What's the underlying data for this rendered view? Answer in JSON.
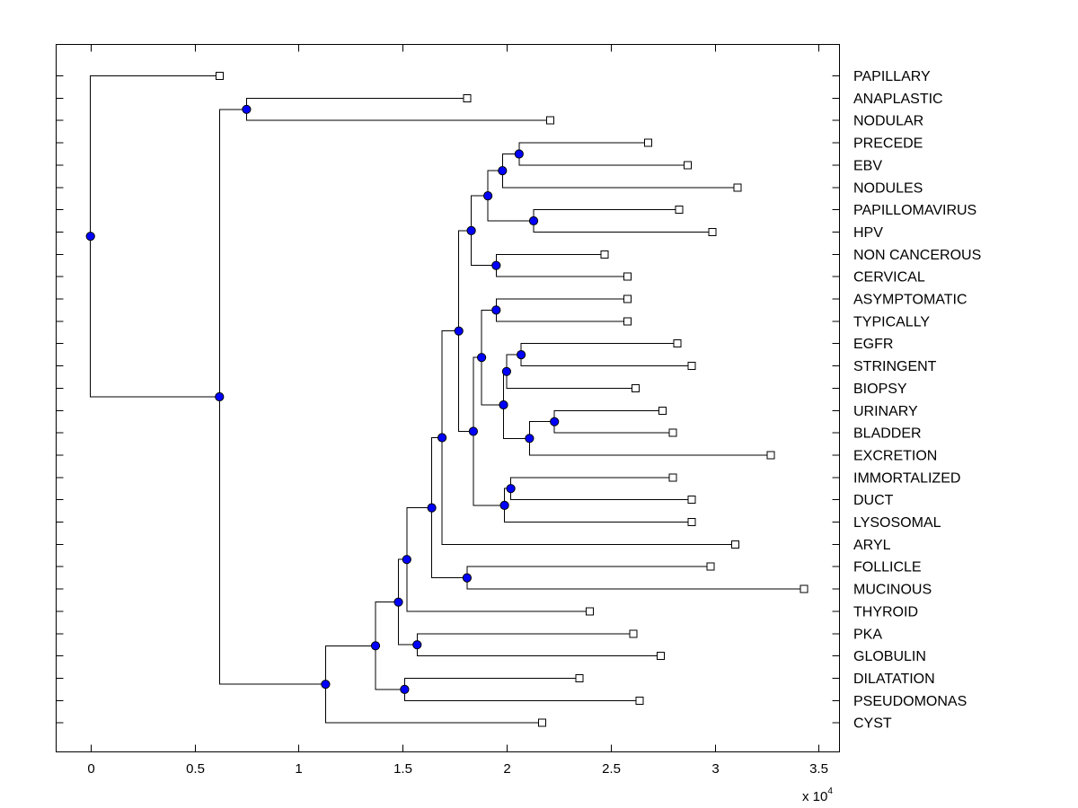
{
  "chart_data": {
    "type": "dendrogram",
    "orientation": "horizontal",
    "xlim": [
      -1650,
      36000
    ],
    "x_ticks": [
      0,
      5000,
      10000,
      15000,
      20000,
      25000,
      30000,
      35000
    ],
    "x_tick_labels": [
      "0",
      "0.5",
      "1",
      "1.5",
      "2",
      "2.5",
      "3",
      "3.5"
    ],
    "x_exponent": {
      "base": "x 10",
      "power": "4"
    },
    "colors": {
      "internal_node": "#0000ff",
      "leaf_marker": "#ffffff",
      "lines": "#000000"
    },
    "leaves": [
      {
        "label": "PAPILLARY",
        "value": 6200
      },
      {
        "label": "ANAPLASTIC",
        "value": 18100
      },
      {
        "label": "NODULAR",
        "value": 22100
      },
      {
        "label": "PRECEDE",
        "value": 26800
      },
      {
        "label": "EBV",
        "value": 28700
      },
      {
        "label": "NODULES",
        "value": 31100
      },
      {
        "label": "PAPILLOMAVIRUS",
        "value": 28300
      },
      {
        "label": "HPV",
        "value": 29900
      },
      {
        "label": "NON CANCEROUS",
        "value": 24700
      },
      {
        "label": "CERVICAL",
        "value": 25800
      },
      {
        "label": "ASYMPTOMATIC",
        "value": 25800
      },
      {
        "label": "TYPICALLY",
        "value": 25800
      },
      {
        "label": "EGFR",
        "value": 28200
      },
      {
        "label": "STRINGENT",
        "value": 28900
      },
      {
        "label": "BIOPSY",
        "value": 26200
      },
      {
        "label": "URINARY",
        "value": 27500
      },
      {
        "label": "BLADDER",
        "value": 28000
      },
      {
        "label": "EXCRETION",
        "value": 32700
      },
      {
        "label": "IMMORTALIZED",
        "value": 28000
      },
      {
        "label": "DUCT",
        "value": 28900
      },
      {
        "label": "LYSOSOMAL",
        "value": 28900
      },
      {
        "label": "ARYL",
        "value": 31000
      },
      {
        "label": "FOLLICLE",
        "value": 29800
      },
      {
        "label": "MUCINOUS",
        "value": 34300
      },
      {
        "label": "THYROID",
        "value": 24000
      },
      {
        "label": "PKA",
        "value": 26100
      },
      {
        "label": "GLOBULIN",
        "value": 27400
      },
      {
        "label": "DILATATION",
        "value": 23500
      },
      {
        "label": "PSEUDOMONAS",
        "value": 26400
      },
      {
        "label": "CYST",
        "value": 21700
      }
    ],
    "nodes": [
      {
        "id": "n_root",
        "value": 0,
        "children": [
          "L0",
          "n_062"
        ]
      },
      {
        "id": "n_062",
        "value": 6200,
        "children": [
          "n_075",
          "n_113"
        ]
      },
      {
        "id": "n_075",
        "value": 7500,
        "children": [
          "L1",
          "L2"
        ]
      },
      {
        "id": "n_113",
        "value": 11300,
        "children": [
          "n_137",
          "L29"
        ]
      },
      {
        "id": "n_137",
        "value": 13700,
        "children": [
          "n_148",
          "n_151"
        ]
      },
      {
        "id": "n_151",
        "value": 15100,
        "children": [
          "L27",
          "L28"
        ]
      },
      {
        "id": "n_148",
        "value": 14800,
        "children": [
          "n_152",
          "n_157"
        ]
      },
      {
        "id": "n_157",
        "value": 15700,
        "children": [
          "L25",
          "L26"
        ]
      },
      {
        "id": "n_152",
        "value": 15200,
        "children": [
          "n_164",
          "L24"
        ]
      },
      {
        "id": "n_164",
        "value": 16400,
        "children": [
          "n_169",
          "n_181"
        ]
      },
      {
        "id": "n_181",
        "value": 18100,
        "children": [
          "L22",
          "L23"
        ]
      },
      {
        "id": "n_169",
        "value": 16900,
        "children": [
          "n_177",
          "L21"
        ]
      },
      {
        "id": "n_177",
        "value": 17700,
        "children": [
          "n_183a",
          "n_184"
        ]
      },
      {
        "id": "n_183a",
        "value": 18300,
        "children": [
          "n_191",
          "n_195a"
        ]
      },
      {
        "id": "n_195a",
        "value": 19500,
        "children": [
          "L8",
          "L9"
        ]
      },
      {
        "id": "n_191",
        "value": 19100,
        "children": [
          "n_198",
          "n_213"
        ]
      },
      {
        "id": "n_213",
        "value": 21300,
        "children": [
          "L6",
          "L7"
        ]
      },
      {
        "id": "n_198",
        "value": 19800,
        "children": [
          "n_206",
          "L5"
        ]
      },
      {
        "id": "n_206",
        "value": 20600,
        "children": [
          "L3",
          "L4"
        ]
      },
      {
        "id": "n_184",
        "value": 18400,
        "children": [
          "n_188",
          "n_199"
        ]
      },
      {
        "id": "n_199",
        "value": 19900,
        "children": [
          "n_202",
          "L20"
        ]
      },
      {
        "id": "n_202",
        "value": 20200,
        "children": [
          "L18",
          "L19"
        ]
      },
      {
        "id": "n_188",
        "value": 18800,
        "children": [
          "n_195b",
          "n_198b"
        ]
      },
      {
        "id": "n_195b",
        "value": 19500,
        "children": [
          "L10",
          "L11"
        ]
      },
      {
        "id": "n_198b",
        "value": 19850,
        "children": [
          "n_199b",
          "n_211"
        ]
      },
      {
        "id": "n_211",
        "value": 21100,
        "children": [
          "n_223",
          "L17"
        ]
      },
      {
        "id": "n_223",
        "value": 22300,
        "children": [
          "L15",
          "L16"
        ]
      },
      {
        "id": "n_199b",
        "value": 20000,
        "children": [
          "n_207",
          "L14"
        ]
      },
      {
        "id": "n_207",
        "value": 20700,
        "children": [
          "L12",
          "L13"
        ]
      }
    ]
  }
}
